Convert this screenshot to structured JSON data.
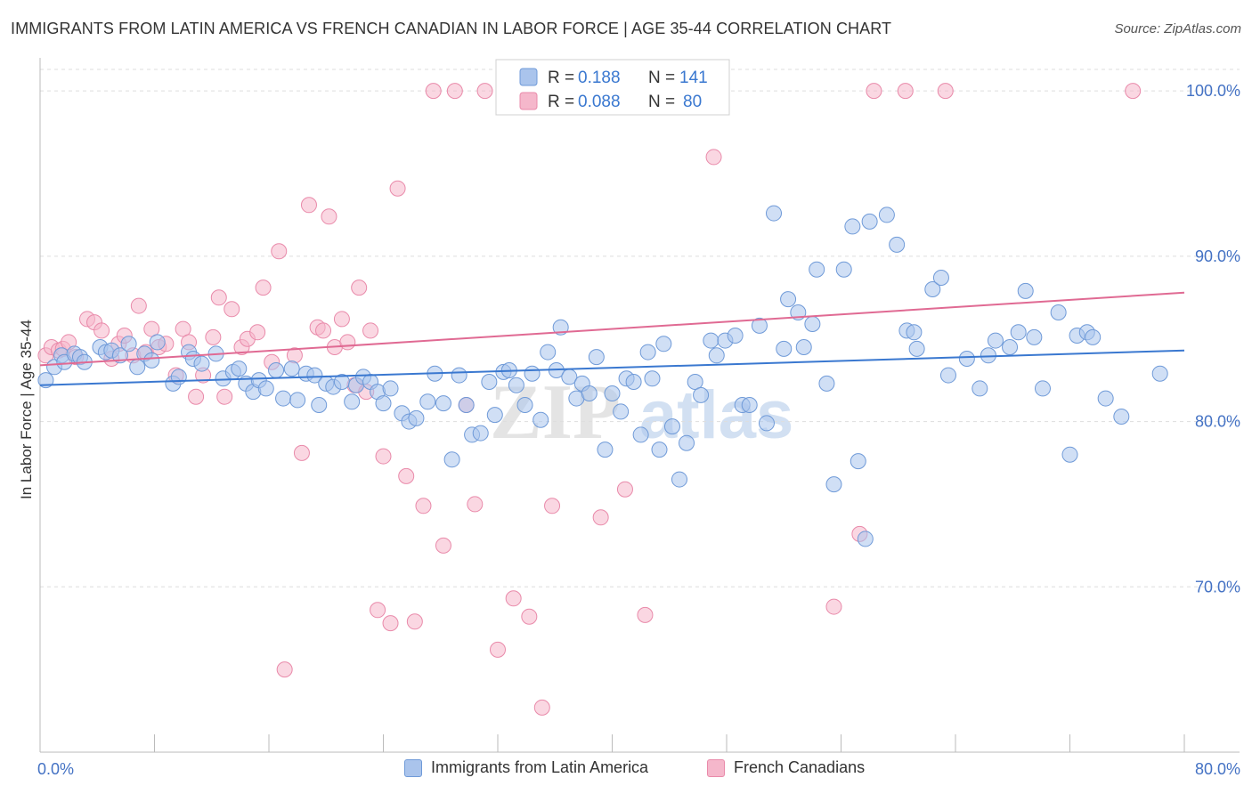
{
  "title": "IMMIGRANTS FROM LATIN AMERICA VS FRENCH CANADIAN IN LABOR FORCE | AGE 35-44 CORRELATION CHART",
  "source": "Source: ZipAtlas.com",
  "watermark": {
    "zip": "ZIP",
    "atlas": "atlas"
  },
  "colors": {
    "blue_fill": "#aac4ec",
    "blue_stroke": "#6f9ad8",
    "blue_line": "#3a78d0",
    "pink_fill": "#f5b7cb",
    "pink_stroke": "#e98aaa",
    "pink_line": "#e06a93",
    "tick_text": "#4472c4",
    "grid": "#dddddd"
  },
  "legend_box": {
    "rows": [
      {
        "r_label": "R =",
        "r_value": "0.188",
        "n_label": "N =",
        "n_value": "141"
      },
      {
        "r_label": "R =",
        "r_value": "0.088",
        "n_label": "N =",
        "n_value": "80"
      }
    ]
  },
  "bottom_legend": [
    "Immigrants from Latin America",
    "French Canadians"
  ],
  "chart_data": {
    "type": "scatter",
    "title": "IMMIGRANTS FROM LATIN AMERICA VS FRENCH CANADIAN IN LABOR FORCE | AGE 35-44 CORRELATION CHART",
    "xlabel": "",
    "ylabel": "In Labor Force | Age 35-44",
    "xlim": [
      0,
      80
    ],
    "ylim": [
      60,
      102
    ],
    "x_tick_labels": [
      "0.0%",
      "80.0%"
    ],
    "y_ticks": [
      70,
      80,
      90,
      100
    ],
    "y_tick_labels": [
      "70.0%",
      "80.0%",
      "90.0%",
      "100.0%"
    ],
    "grid": true,
    "legend_placement": "top-center",
    "series": [
      {
        "name": "Immigrants from Latin America",
        "R": 0.188,
        "N": 141,
        "trend": {
          "x": [
            0,
            80
          ],
          "y": [
            82.2,
            84.3
          ]
        },
        "points": [
          [
            0.4,
            82.5
          ],
          [
            1.0,
            83.3
          ],
          [
            1.5,
            84.0
          ],
          [
            1.7,
            83.6
          ],
          [
            2.4,
            84.1
          ],
          [
            2.8,
            83.9
          ],
          [
            3.1,
            83.6
          ],
          [
            4.2,
            84.5
          ],
          [
            4.6,
            84.2
          ],
          [
            5.0,
            84.3
          ],
          [
            5.6,
            84.0
          ],
          [
            6.2,
            84.7
          ],
          [
            6.8,
            83.3
          ],
          [
            7.3,
            84.1
          ],
          [
            7.8,
            83.7
          ],
          [
            8.2,
            84.8
          ],
          [
            9.3,
            82.3
          ],
          [
            9.7,
            82.7
          ],
          [
            10.4,
            84.2
          ],
          [
            10.7,
            83.8
          ],
          [
            11.3,
            83.5
          ],
          [
            12.3,
            84.1
          ],
          [
            12.8,
            82.6
          ],
          [
            13.5,
            83.0
          ],
          [
            13.9,
            83.2
          ],
          [
            14.4,
            82.3
          ],
          [
            14.9,
            81.8
          ],
          [
            15.3,
            82.5
          ],
          [
            15.8,
            82.0
          ],
          [
            16.5,
            83.1
          ],
          [
            17.0,
            81.4
          ],
          [
            17.6,
            83.2
          ],
          [
            18.0,
            81.3
          ],
          [
            18.6,
            82.9
          ],
          [
            19.2,
            82.8
          ],
          [
            19.5,
            81.0
          ],
          [
            20.0,
            82.3
          ],
          [
            20.5,
            82.1
          ],
          [
            21.1,
            82.4
          ],
          [
            21.8,
            81.2
          ],
          [
            22.1,
            82.2
          ],
          [
            22.6,
            82.7
          ],
          [
            23.1,
            82.4
          ],
          [
            23.6,
            81.8
          ],
          [
            24.0,
            81.1
          ],
          [
            24.5,
            82.0
          ],
          [
            25.3,
            80.5
          ],
          [
            25.8,
            80.0
          ],
          [
            26.3,
            80.2
          ],
          [
            27.1,
            81.2
          ],
          [
            27.6,
            82.9
          ],
          [
            28.2,
            81.1
          ],
          [
            28.8,
            77.7
          ],
          [
            29.3,
            82.8
          ],
          [
            29.8,
            81.0
          ],
          [
            30.2,
            79.2
          ],
          [
            30.8,
            79.3
          ],
          [
            31.4,
            82.4
          ],
          [
            31.8,
            80.4
          ],
          [
            32.4,
            83.0
          ],
          [
            32.8,
            83.1
          ],
          [
            33.3,
            82.2
          ],
          [
            33.9,
            81.0
          ],
          [
            34.4,
            82.9
          ],
          [
            35.0,
            80.1
          ],
          [
            35.5,
            84.2
          ],
          [
            36.1,
            83.1
          ],
          [
            36.4,
            85.7
          ],
          [
            37.0,
            82.7
          ],
          [
            37.5,
            81.4
          ],
          [
            37.9,
            82.3
          ],
          [
            38.4,
            81.7
          ],
          [
            38.9,
            83.9
          ],
          [
            39.5,
            78.3
          ],
          [
            40.0,
            81.7
          ],
          [
            40.6,
            80.6
          ],
          [
            41.0,
            82.6
          ],
          [
            41.5,
            82.4
          ],
          [
            42.0,
            79.2
          ],
          [
            42.5,
            84.2
          ],
          [
            42.8,
            82.6
          ],
          [
            43.3,
            78.3
          ],
          [
            43.6,
            84.7
          ],
          [
            44.2,
            79.7
          ],
          [
            44.7,
            76.5
          ],
          [
            45.2,
            78.7
          ],
          [
            45.8,
            82.4
          ],
          [
            46.2,
            81.6
          ],
          [
            46.9,
            84.9
          ],
          [
            47.3,
            84.0
          ],
          [
            47.9,
            84.9
          ],
          [
            48.6,
            85.2
          ],
          [
            49.1,
            81.0
          ],
          [
            49.6,
            81.0
          ],
          [
            50.3,
            85.8
          ],
          [
            50.8,
            79.9
          ],
          [
            51.3,
            92.6
          ],
          [
            52.0,
            84.4
          ],
          [
            52.3,
            87.4
          ],
          [
            53.0,
            86.6
          ],
          [
            53.4,
            84.5
          ],
          [
            54.0,
            85.9
          ],
          [
            54.3,
            89.2
          ],
          [
            55.0,
            82.3
          ],
          [
            55.5,
            76.2
          ],
          [
            56.2,
            89.2
          ],
          [
            56.8,
            91.8
          ],
          [
            57.2,
            77.6
          ],
          [
            57.7,
            72.9
          ],
          [
            58.0,
            92.1
          ],
          [
            59.2,
            92.5
          ],
          [
            59.9,
            90.7
          ],
          [
            60.6,
            85.5
          ],
          [
            61.1,
            85.4
          ],
          [
            61.3,
            84.4
          ],
          [
            62.4,
            88.0
          ],
          [
            63.0,
            88.7
          ],
          [
            63.5,
            82.8
          ],
          [
            64.8,
            83.8
          ],
          [
            65.7,
            82.0
          ],
          [
            66.3,
            84.0
          ],
          [
            66.8,
            84.9
          ],
          [
            67.8,
            84.5
          ],
          [
            68.4,
            85.4
          ],
          [
            68.9,
            87.9
          ],
          [
            69.5,
            85.1
          ],
          [
            70.1,
            82.0
          ],
          [
            71.2,
            86.6
          ],
          [
            72.0,
            78.0
          ],
          [
            72.5,
            85.2
          ],
          [
            73.2,
            85.4
          ],
          [
            73.6,
            85.1
          ],
          [
            74.5,
            81.4
          ],
          [
            75.6,
            80.3
          ],
          [
            78.3,
            82.9
          ]
        ]
      },
      {
        "name": "French Canadians",
        "R": 0.088,
        "N": 80,
        "trend": {
          "x": [
            0,
            80
          ],
          "y": [
            83.4,
            87.8
          ]
        },
        "points": [
          [
            0.4,
            84.0
          ],
          [
            0.8,
            84.5
          ],
          [
            1.3,
            84.3
          ],
          [
            1.6,
            84.4
          ],
          [
            2.0,
            84.8
          ],
          [
            2.5,
            83.9
          ],
          [
            3.3,
            86.2
          ],
          [
            3.8,
            86.0
          ],
          [
            4.3,
            85.5
          ],
          [
            5.0,
            83.8
          ],
          [
            5.5,
            84.7
          ],
          [
            5.9,
            85.2
          ],
          [
            6.5,
            84.0
          ],
          [
            6.9,
            87.0
          ],
          [
            7.4,
            84.2
          ],
          [
            7.8,
            85.6
          ],
          [
            8.3,
            84.5
          ],
          [
            8.8,
            84.7
          ],
          [
            9.5,
            82.8
          ],
          [
            10.0,
            85.6
          ],
          [
            10.4,
            84.8
          ],
          [
            10.9,
            81.5
          ],
          [
            11.4,
            82.8
          ],
          [
            12.1,
            85.1
          ],
          [
            12.5,
            87.5
          ],
          [
            12.9,
            81.5
          ],
          [
            13.4,
            86.8
          ],
          [
            14.1,
            84.5
          ],
          [
            14.5,
            85.0
          ],
          [
            15.2,
            85.4
          ],
          [
            15.6,
            88.1
          ],
          [
            16.2,
            83.6
          ],
          [
            16.7,
            90.3
          ],
          [
            17.1,
            65.0
          ],
          [
            17.8,
            84.0
          ],
          [
            18.3,
            78.1
          ],
          [
            18.8,
            93.1
          ],
          [
            19.4,
            85.7
          ],
          [
            19.8,
            85.5
          ],
          [
            20.2,
            92.4
          ],
          [
            20.6,
            84.5
          ],
          [
            21.1,
            86.2
          ],
          [
            21.5,
            84.8
          ],
          [
            22.0,
            82.2
          ],
          [
            22.3,
            88.1
          ],
          [
            22.8,
            81.8
          ],
          [
            23.1,
            85.5
          ],
          [
            23.6,
            68.6
          ],
          [
            24.0,
            77.9
          ],
          [
            24.5,
            67.8
          ],
          [
            25.0,
            94.1
          ],
          [
            25.6,
            76.7
          ],
          [
            26.2,
            67.9
          ],
          [
            26.8,
            74.9
          ],
          [
            27.5,
            100.0
          ],
          [
            28.2,
            72.5
          ],
          [
            29.0,
            100.0
          ],
          [
            29.8,
            81.0
          ],
          [
            30.4,
            75.0
          ],
          [
            31.1,
            100.0
          ],
          [
            32.0,
            66.2
          ],
          [
            32.5,
            100.0
          ],
          [
            33.1,
            69.3
          ],
          [
            34.2,
            68.2
          ],
          [
            35.1,
            62.7
          ],
          [
            35.8,
            74.9
          ],
          [
            36.7,
            100.0
          ],
          [
            37.1,
            100.0
          ],
          [
            39.2,
            74.2
          ],
          [
            40.5,
            100.0
          ],
          [
            40.9,
            75.9
          ],
          [
            41.4,
            100.0
          ],
          [
            42.3,
            68.3
          ],
          [
            47.1,
            96.0
          ],
          [
            55.5,
            68.8
          ],
          [
            57.3,
            73.2
          ],
          [
            58.3,
            100.0
          ],
          [
            60.5,
            100.0
          ],
          [
            63.3,
            100.0
          ],
          [
            76.4,
            100.0
          ]
        ]
      }
    ]
  }
}
